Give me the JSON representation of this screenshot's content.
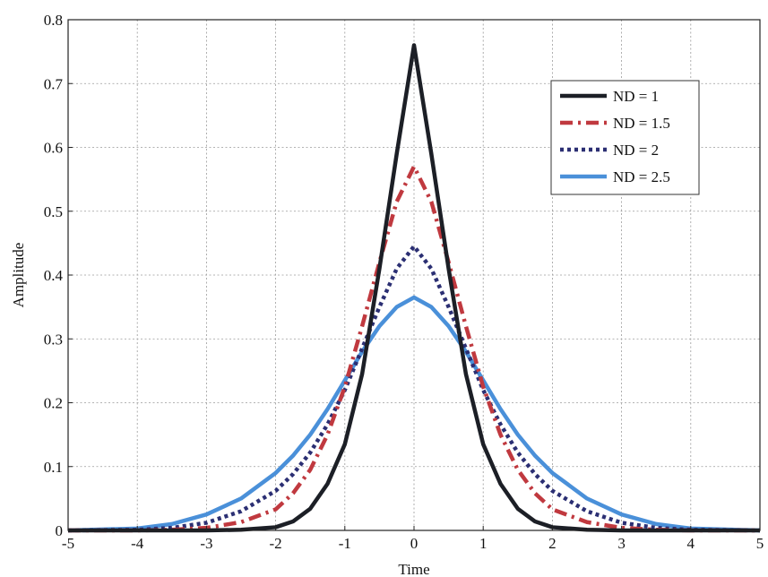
{
  "chart_data": {
    "type": "line",
    "title": "",
    "xlabel": "Time",
    "ylabel": "Amplitude",
    "xlim": [
      -5,
      5
    ],
    "ylim": [
      0,
      0.8
    ],
    "x_ticks": [
      "-5",
      "-4",
      "-3",
      "-2",
      "-1",
      "0",
      "1",
      "2",
      "3",
      "4",
      "5"
    ],
    "y_ticks": [
      "0",
      "0.1",
      "0.2",
      "0.3",
      "0.4",
      "0.5",
      "0.6",
      "0.7",
      "0.8"
    ],
    "grid": true,
    "legend_position": "top-right",
    "x": [
      -5,
      -4,
      -3.5,
      -3,
      -2.5,
      -2,
      -1.75,
      -1.5,
      -1.25,
      -1,
      -0.75,
      -0.5,
      -0.25,
      0,
      0.25,
      0.5,
      0.75,
      1,
      1.25,
      1.5,
      1.75,
      2,
      2.5,
      3,
      3.5,
      4,
      5
    ],
    "series": [
      {
        "name": "ND = 1",
        "color": "#1c1f26",
        "style": "solid",
        "values": [
          0,
          0,
          0,
          0,
          0.001,
          0.005,
          0.014,
          0.034,
          0.073,
          0.135,
          0.245,
          0.41,
          0.59,
          0.76,
          0.59,
          0.41,
          0.245,
          0.135,
          0.073,
          0.034,
          0.014,
          0.005,
          0.001,
          0,
          0,
          0,
          0
        ]
      },
      {
        "name": "ND = 1.5",
        "color": "#c0393f",
        "style": "dashdot",
        "values": [
          0,
          0,
          0.001,
          0.004,
          0.013,
          0.033,
          0.058,
          0.095,
          0.15,
          0.225,
          0.32,
          0.42,
          0.515,
          0.57,
          0.515,
          0.42,
          0.32,
          0.225,
          0.15,
          0.095,
          0.058,
          0.033,
          0.013,
          0.004,
          0.001,
          0,
          0
        ]
      },
      {
        "name": "ND = 2",
        "color": "#2b2f73",
        "style": "dotted",
        "values": [
          0,
          0.001,
          0.004,
          0.012,
          0.03,
          0.062,
          0.088,
          0.122,
          0.166,
          0.22,
          0.285,
          0.35,
          0.41,
          0.445,
          0.41,
          0.35,
          0.285,
          0.22,
          0.166,
          0.122,
          0.088,
          0.062,
          0.03,
          0.012,
          0.004,
          0.001,
          0
        ]
      },
      {
        "name": "ND = 2.5",
        "color": "#4a90d9",
        "style": "solid",
        "values": [
          0,
          0.003,
          0.01,
          0.025,
          0.05,
          0.09,
          0.117,
          0.15,
          0.19,
          0.235,
          0.28,
          0.32,
          0.35,
          0.365,
          0.35,
          0.32,
          0.28,
          0.235,
          0.19,
          0.15,
          0.117,
          0.09,
          0.05,
          0.025,
          0.01,
          0.003,
          0
        ]
      }
    ]
  }
}
